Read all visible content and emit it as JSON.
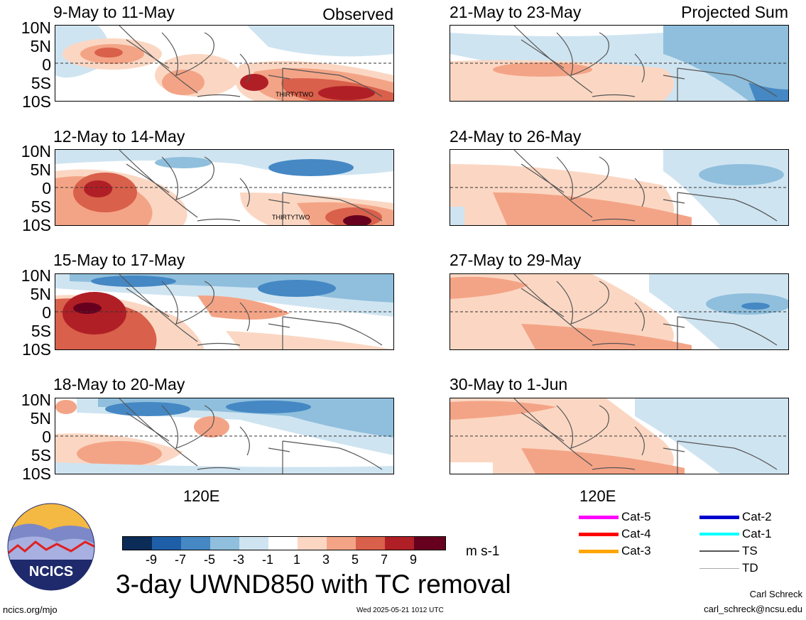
{
  "columns": {
    "left_title": "Observed",
    "right_title": "Projected Sum"
  },
  "panels": [
    {
      "id": "obs1",
      "title": "9-May to 11-May",
      "storm_label": "THIRTYTWO"
    },
    {
      "id": "obs2",
      "title": "12-May to 14-May",
      "storm_label": "THIRTYTWO"
    },
    {
      "id": "obs3",
      "title": "15-May to 17-May",
      "storm_label": ""
    },
    {
      "id": "obs4",
      "title": "18-May to 20-May",
      "storm_label": ""
    },
    {
      "id": "proj1",
      "title": "21-May to 23-May",
      "storm_label": ""
    },
    {
      "id": "proj2",
      "title": "24-May to 26-May",
      "storm_label": ""
    },
    {
      "id": "proj3",
      "title": "27-May to 29-May",
      "storm_label": ""
    },
    {
      "id": "proj4",
      "title": "30-May to 1-Jun",
      "storm_label": ""
    }
  ],
  "lat_labels": [
    "10N",
    "5N",
    "0",
    "5S",
    "10S"
  ],
  "lon_label": "120E",
  "colorbar": {
    "labels": [
      "-9",
      "-7",
      "-5",
      "-3",
      "-1",
      "1",
      "3",
      "5",
      "7",
      "9"
    ],
    "colors": [
      "#0b2c57",
      "#1f5fa8",
      "#4588c4",
      "#8fbfdc",
      "#cfe4f1",
      "#ffffff",
      "#fbd7c3",
      "#f4a486",
      "#d9604b",
      "#b11f26",
      "#67001f"
    ],
    "units": "m s-1"
  },
  "main_title": "3-day UWND850 with TC removal",
  "logo_text": "NCICS",
  "url": "ncics.org/mjo",
  "timestamp": "Wed 2025-05-21 1012 UTC",
  "author": "Carl Schreck",
  "email": "carl_schreck@ncsu.edu",
  "tc_legend": [
    {
      "label": "Cat-5",
      "color": "#ff00ff",
      "style": "thick"
    },
    {
      "label": "Cat-4",
      "color": "#ff0000",
      "style": "thick"
    },
    {
      "label": "Cat-3",
      "color": "#ffa500",
      "style": "thick"
    },
    {
      "label": "Cat-2",
      "color": "#0000cd",
      "style": "thick"
    },
    {
      "label": "Cat-1",
      "color": "#00ffff",
      "style": "thick"
    },
    {
      "label": "TS",
      "color": "#555555",
      "style": "medium"
    },
    {
      "label": "TD",
      "color": "#aaaaaa",
      "style": "thin"
    }
  ]
}
